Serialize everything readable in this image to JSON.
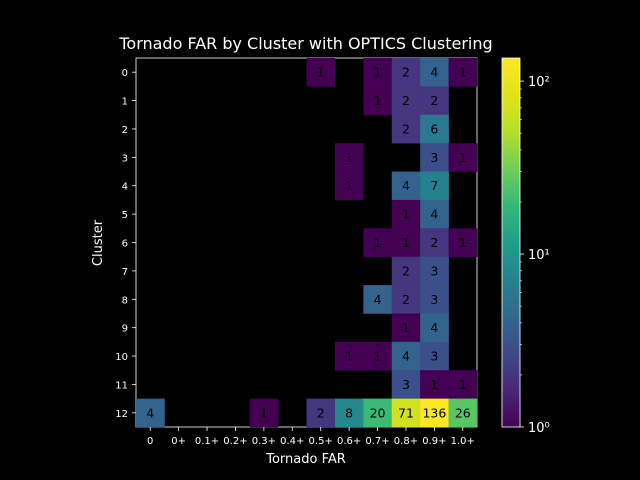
{
  "chart_data": {
    "type": "heatmap",
    "title": "Tornado FAR by Cluster with OPTICS Clustering",
    "xlabel": "Tornado FAR",
    "ylabel": "Cluster",
    "x_tick_labels": [
      "0",
      "0+",
      "0.1+",
      "0.2+",
      "0.3+",
      "0.4+",
      "0.5+",
      "0.6+",
      "0.7+",
      "0.8+",
      "0.9+",
      "1.0+"
    ],
    "y_tick_labels": [
      "0",
      "1",
      "2",
      "3",
      "4",
      "5",
      "6",
      "7",
      "8",
      "9",
      "10",
      "11",
      "12"
    ],
    "color_scale": "log",
    "colormap": "viridis",
    "colorbar_range": [
      1,
      136
    ],
    "colorbar_ticks": [
      {
        "value": 1,
        "label": "10⁰"
      },
      {
        "value": 10,
        "label": "10¹"
      },
      {
        "value": 100,
        "label": "10²"
      }
    ],
    "grid": false,
    "values": [
      [
        null,
        null,
        null,
        null,
        null,
        null,
        1,
        null,
        1,
        2,
        4,
        1
      ],
      [
        null,
        null,
        null,
        null,
        null,
        null,
        null,
        null,
        1,
        2,
        2,
        null
      ],
      [
        null,
        null,
        null,
        null,
        null,
        null,
        null,
        null,
        null,
        2,
        6,
        null
      ],
      [
        null,
        null,
        null,
        null,
        null,
        null,
        null,
        1,
        null,
        null,
        3,
        1
      ],
      [
        null,
        null,
        null,
        null,
        null,
        null,
        null,
        1,
        null,
        4,
        7,
        null
      ],
      [
        null,
        null,
        null,
        null,
        null,
        null,
        null,
        null,
        null,
        1,
        4,
        null
      ],
      [
        null,
        null,
        null,
        null,
        null,
        null,
        null,
        null,
        1,
        1,
        2,
        1
      ],
      [
        null,
        null,
        null,
        null,
        null,
        null,
        null,
        null,
        null,
        2,
        3,
        null
      ],
      [
        null,
        null,
        null,
        null,
        null,
        null,
        null,
        null,
        4,
        2,
        3,
        null
      ],
      [
        null,
        null,
        null,
        null,
        null,
        null,
        null,
        null,
        null,
        1,
        4,
        null
      ],
      [
        null,
        null,
        null,
        null,
        null,
        null,
        null,
        1,
        1,
        4,
        3,
        null
      ],
      [
        null,
        null,
        null,
        null,
        null,
        null,
        null,
        null,
        null,
        3,
        1,
        1
      ],
      [
        4,
        null,
        null,
        null,
        1,
        null,
        2,
        8,
        20,
        71,
        136,
        26
      ]
    ]
  }
}
